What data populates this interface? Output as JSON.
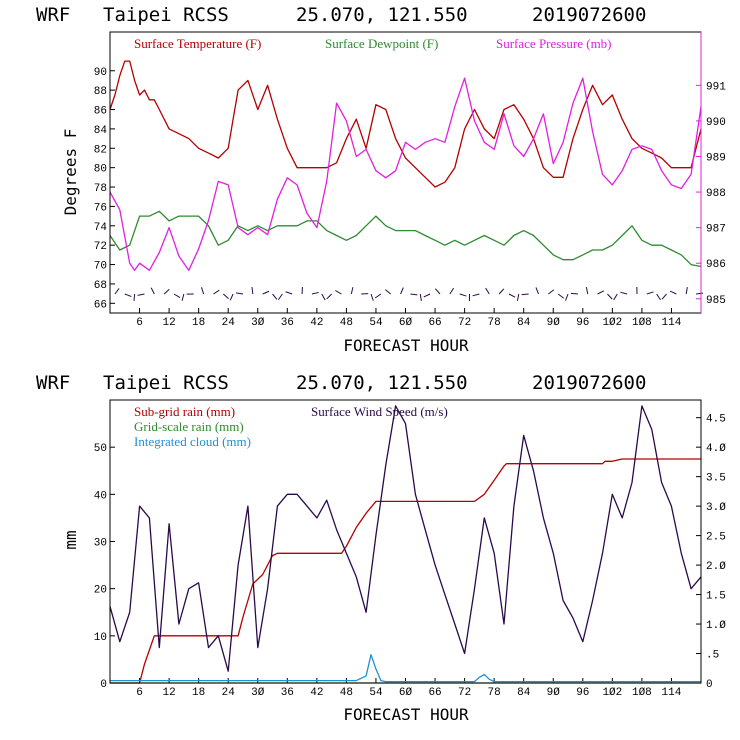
{
  "chart_data": [
    {
      "type": "line",
      "title": "WRF   Taipei RCSS    25.070, 121.550   2019072600",
      "xlabel": "FORECAST HOUR",
      "ylabel": "Degrees F",
      "y2label": "",
      "xlim": [
        0,
        120
      ],
      "ylim": [
        65,
        94
      ],
      "y2lim": [
        984.6,
        992.5
      ],
      "xticks": [
        6,
        12,
        18,
        24,
        30,
        36,
        42,
        48,
        54,
        60,
        66,
        72,
        78,
        84,
        90,
        96,
        102,
        108,
        114
      ],
      "xtick_labels": [
        "6",
        "12",
        "18",
        "24",
        "3Ø",
        "36",
        "42",
        "48",
        "54",
        "6Ø",
        "66",
        "72",
        "78",
        "84",
        "9Ø",
        "96",
        "1Ø2",
        "1Ø8",
        "114"
      ],
      "yticks": [
        66,
        68,
        70,
        72,
        74,
        76,
        78,
        80,
        82,
        84,
        86,
        88,
        90
      ],
      "y2ticks": [
        985,
        986,
        987,
        988,
        989,
        990,
        991
      ],
      "series": [
        {
          "name": "Surface Temperature (F)",
          "color": "#b40000",
          "axis": "left",
          "x": [
            0,
            1,
            2,
            3,
            4,
            5,
            6,
            7,
            8,
            9,
            10,
            12,
            14,
            16,
            18,
            20,
            22,
            24,
            25,
            26,
            28,
            30,
            32,
            34,
            36,
            38,
            40,
            42,
            44,
            46,
            48,
            50,
            52,
            54,
            56,
            58,
            60,
            62,
            64,
            66,
            68,
            70,
            72,
            74,
            76,
            78,
            80,
            82,
            84,
            86,
            88,
            90,
            92,
            94,
            96,
            98,
            100,
            102,
            104,
            106,
            108,
            110,
            112,
            114,
            116,
            118,
            120
          ],
          "y": [
            86,
            87.5,
            89.5,
            91,
            91,
            89,
            87.5,
            88,
            87,
            87,
            86,
            84,
            83.5,
            83,
            82,
            81.5,
            81,
            82,
            85,
            88,
            89,
            86,
            88.5,
            85,
            82,
            80,
            80,
            80,
            80,
            80.5,
            83,
            85,
            82,
            86.5,
            86,
            83,
            81,
            80,
            79,
            78,
            78.5,
            80,
            84,
            86,
            84,
            83,
            86,
            86.5,
            85,
            83,
            80,
            79,
            79,
            83,
            86,
            88.5,
            86.5,
            87.5,
            85,
            83,
            82,
            81.5,
            81,
            80,
            80,
            80,
            84
          ]
        },
        {
          "name": "Surface Dewpoint (F)",
          "color": "#2e8b2e",
          "axis": "left",
          "x": [
            0,
            2,
            4,
            6,
            8,
            10,
            12,
            14,
            16,
            18,
            20,
            22,
            24,
            26,
            28,
            30,
            32,
            34,
            36,
            38,
            40,
            42,
            44,
            46,
            48,
            50,
            52,
            54,
            56,
            58,
            60,
            62,
            64,
            66,
            68,
            70,
            72,
            74,
            76,
            78,
            80,
            82,
            84,
            86,
            88,
            90,
            92,
            94,
            96,
            98,
            100,
            102,
            104,
            106,
            108,
            110,
            112,
            114,
            116,
            118,
            120
          ],
          "y": [
            73,
            71.5,
            72,
            75,
            75,
            75.5,
            74.5,
            75,
            75,
            75,
            74,
            72,
            72.5,
            74,
            73.5,
            74,
            73.5,
            74,
            74,
            74,
            74.5,
            74.5,
            73.5,
            73,
            72.5,
            73,
            74,
            75,
            74,
            73.5,
            73.5,
            73.5,
            73,
            72.5,
            72,
            72.5,
            72,
            72.5,
            73,
            72.5,
            72,
            73,
            73.5,
            73,
            72,
            71,
            70.5,
            70.5,
            71,
            71.5,
            71.5,
            72,
            73,
            74,
            72.5,
            72,
            72,
            71.5,
            71,
            70,
            69.8
          ]
        },
        {
          "name": "Surface Pressure (mb)",
          "color": "#e020e0",
          "axis": "right",
          "x": [
            0,
            2,
            4,
            5,
            6,
            8,
            10,
            12,
            14,
            16,
            18,
            20,
            22,
            24,
            26,
            28,
            30,
            32,
            34,
            36,
            38,
            40,
            42,
            44,
            46,
            48,
            50,
            52,
            54,
            56,
            58,
            60,
            62,
            64,
            66,
            68,
            70,
            72,
            74,
            76,
            78,
            80,
            82,
            84,
            86,
            88,
            90,
            92,
            94,
            96,
            98,
            100,
            102,
            104,
            106,
            108,
            110,
            112,
            114,
            116,
            118,
            120
          ],
          "y": [
            988,
            987.5,
            986,
            985.8,
            986,
            985.8,
            986.3,
            987,
            986.2,
            985.8,
            986.4,
            987.2,
            988.3,
            988.2,
            987,
            986.8,
            987,
            986.8,
            987.8,
            988.4,
            988.2,
            987.4,
            987,
            988.3,
            990.5,
            990,
            989,
            989.2,
            988.6,
            988.4,
            988.6,
            989.4,
            989.2,
            989.4,
            989.5,
            989.4,
            990.4,
            991.2,
            990,
            989.4,
            989.2,
            990.2,
            989.3,
            989,
            989.5,
            990.2,
            988.8,
            989.4,
            990.5,
            991.2,
            989.7,
            988.5,
            988.2,
            988.6,
            989.2,
            989.3,
            989.2,
            988.6,
            988.2,
            988.1,
            988.5,
            990.4
          ]
        }
      ],
      "wind_barbs": true
    },
    {
      "type": "line",
      "title": "WRF   Taipei RCSS    25.070, 121.550   2019072600",
      "xlabel": "FORECAST HOUR",
      "ylabel": "mm",
      "xlim": [
        0,
        120
      ],
      "ylim": [
        0,
        60
      ],
      "y2lim": [
        0,
        4.8
      ],
      "yticks": [
        0,
        10,
        20,
        30,
        40,
        50
      ],
      "y2ticks": [
        0,
        0.5,
        1,
        1.5,
        2,
        2.5,
        3,
        3.5,
        4,
        4.5
      ],
      "y2tick_labels": [
        "0",
        ".5",
        "1.Ø",
        "1.5",
        "2.Ø",
        "2.5",
        "3.Ø",
        "3.5",
        "4.Ø",
        "4.5"
      ],
      "series": [
        {
          "name": "Sub-grid rain (mm)",
          "color": "#b40000",
          "axis": "left",
          "x": [
            0,
            6,
            7,
            8,
            9,
            26,
            27,
            29,
            31,
            33,
            34,
            47,
            48,
            50,
            52,
            54,
            56,
            56.5,
            74,
            76,
            78,
            80,
            80.5,
            100,
            100.5,
            102,
            104,
            120
          ],
          "y": [
            0,
            0,
            4,
            7,
            10,
            10,
            14,
            21,
            23,
            27,
            27.5,
            27.5,
            29,
            33,
            36,
            38.5,
            38.5,
            38.5,
            38.5,
            40,
            43,
            46,
            46.5,
            46.5,
            47,
            47,
            47.5,
            47.5
          ]
        },
        {
          "name": "Grid-scale rain (mm)",
          "color": "#2e8b2e",
          "axis": "left",
          "x": [
            0,
            120
          ],
          "y": [
            0,
            0
          ]
        },
        {
          "name": "Integrated cloud (mm)",
          "color": "#1e90d8",
          "axis": "left",
          "x": [
            0,
            48,
            50,
            52,
            53,
            54,
            55,
            56,
            74,
            75,
            76,
            77,
            78,
            120
          ],
          "y": [
            0.5,
            0.5,
            0.5,
            1.5,
            6,
            3,
            0.5,
            0.3,
            0.3,
            1.2,
            1.8,
            0.8,
            0.3,
            0.3
          ]
        },
        {
          "name": "Surface Wind Speed (m/s)",
          "color": "#2a0a4a",
          "axis": "right",
          "x": [
            0,
            2,
            4,
            6,
            8,
            10,
            12,
            14,
            16,
            18,
            20,
            22,
            24,
            26,
            28,
            30,
            32,
            34,
            36,
            38,
            40,
            42,
            44,
            46,
            48,
            50,
            52,
            54,
            56,
            58,
            60,
            62,
            64,
            66,
            68,
            70,
            72,
            74,
            76,
            78,
            80,
            82,
            84,
            86,
            88,
            90,
            92,
            94,
            96,
            98,
            100,
            102,
            104,
            106,
            108,
            110,
            112,
            114,
            116,
            118,
            120
          ],
          "y": [
            1.3,
            0.7,
            1.2,
            3.0,
            2.8,
            0.6,
            2.7,
            1.0,
            1.6,
            1.7,
            0.6,
            0.8,
            0.2,
            2.0,
            3.0,
            0.6,
            1.6,
            3.0,
            3.2,
            3.2,
            3.0,
            2.8,
            3.1,
            2.6,
            2.2,
            1.8,
            1.2,
            2.5,
            3.7,
            4.7,
            4.4,
            3.2,
            2.6,
            2.0,
            1.5,
            1.0,
            0.5,
            1.6,
            2.8,
            2.2,
            1.0,
            3.0,
            4.2,
            3.6,
            2.8,
            2.2,
            1.4,
            1.1,
            0.7,
            1.4,
            2.2,
            3.2,
            2.8,
            3.4,
            4.7,
            4.3,
            3.4,
            3.0,
            2.2,
            1.6,
            1.8
          ]
        }
      ]
    }
  ],
  "panels": [
    {
      "title_model": "WRF",
      "title_station": "Taipei RCSS",
      "title_coords": "25.070, 121.550",
      "title_run": "2019072600",
      "xlabel": "FORECAST HOUR",
      "ylabel": "Degrees F",
      "legend": [
        {
          "text": "Surface Temperature (F)",
          "color": "#b40000"
        },
        {
          "text": "Surface Dewpoint (F)",
          "color": "#2e8b2e"
        },
        {
          "text": "Surface Pressure (mb)",
          "color": "#e020e0"
        }
      ]
    },
    {
      "title_model": "WRF",
      "title_station": "Taipei RCSS",
      "title_coords": "25.070, 121.550",
      "title_run": "2019072600",
      "xlabel": "FORECAST HOUR",
      "ylabel": "mm",
      "legend": [
        {
          "text": "Sub-grid rain (mm)",
          "color": "#b40000"
        },
        {
          "text": "Surface Wind Speed (m/s)",
          "color": "#2a0a4a"
        },
        {
          "text": "Grid-scale rain (mm)",
          "color": "#2e8b2e"
        },
        {
          "text": "Integrated cloud (mm)",
          "color": "#1e90d8"
        }
      ]
    }
  ],
  "colors": {
    "frame": "#000000",
    "background": "#ffffff",
    "right_axis_top": "#e020e0",
    "right_axis_bottom": "#000000"
  }
}
